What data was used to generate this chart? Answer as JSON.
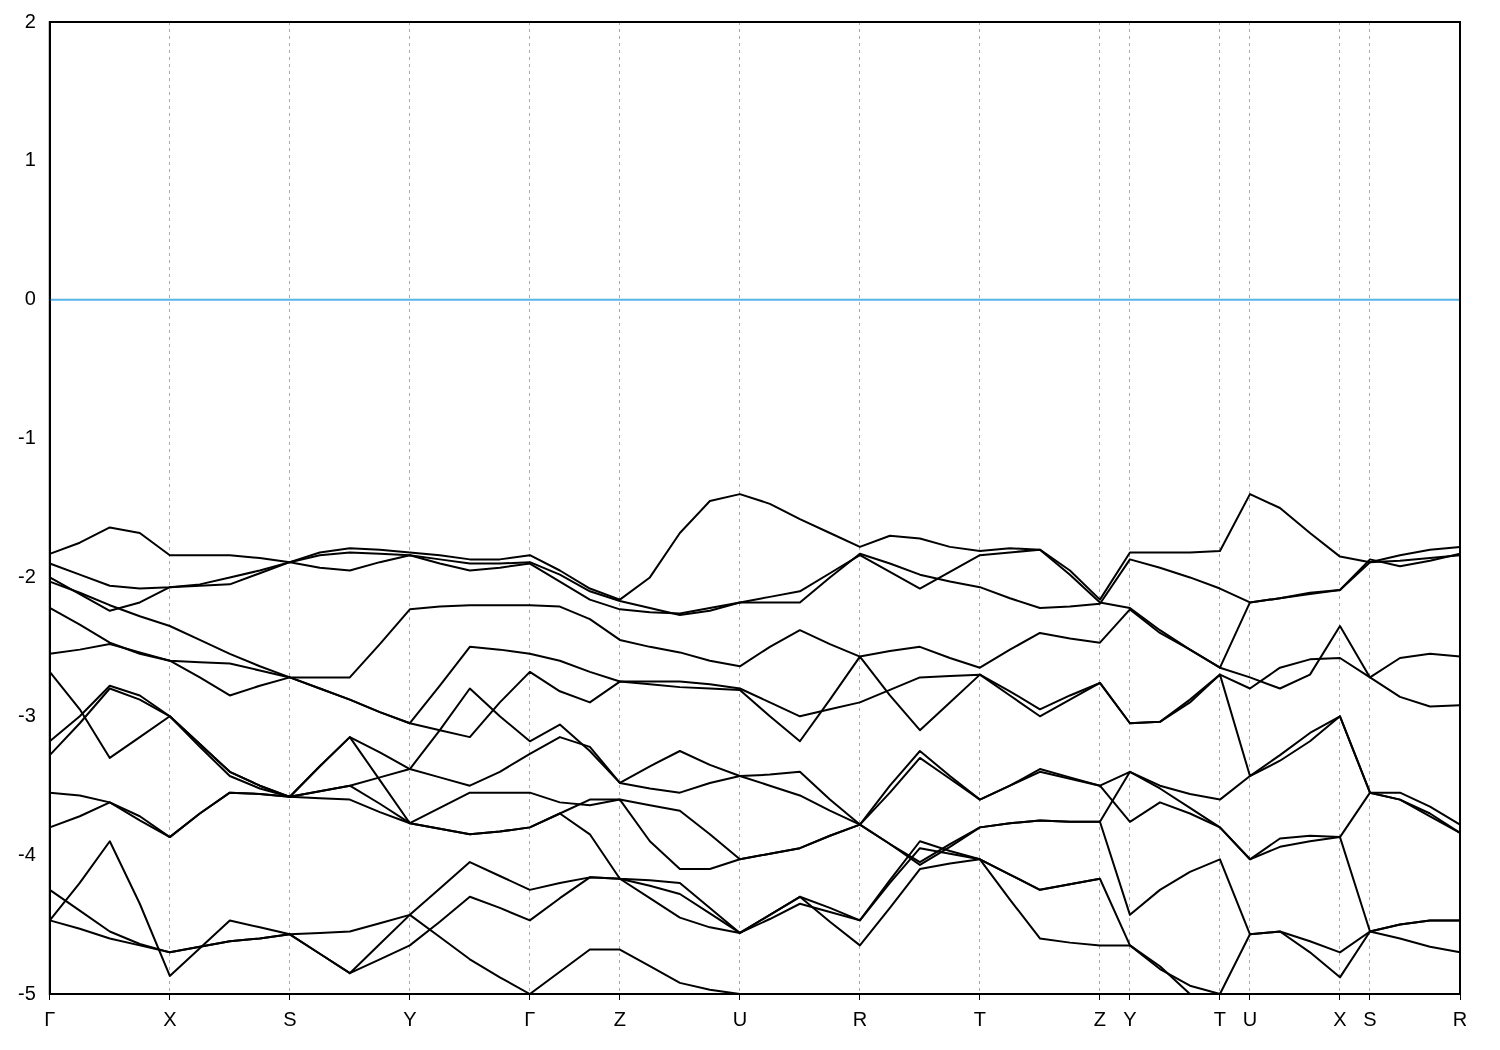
{
  "chart_data": {
    "type": "line",
    "ylim": [
      -5,
      2
    ],
    "yticks": [
      -5,
      -4,
      -3,
      -2,
      -1,
      0,
      1,
      2
    ],
    "categories": [
      "Γ",
      null,
      null,
      null,
      "X",
      null,
      null,
      null,
      "S",
      null,
      null,
      null,
      "Y",
      null,
      null,
      null,
      "Γ",
      null,
      null,
      "Z",
      null,
      null,
      null,
      "U",
      null,
      null,
      null,
      "R",
      null,
      null,
      null,
      "T",
      null,
      null,
      null,
      "Z",
      "Y",
      null,
      null,
      "T",
      "U",
      null,
      null,
      "X",
      "S",
      null,
      null,
      "R"
    ],
    "grid": "x",
    "legend": false,
    "marker": "none",
    "line_style": "solid",
    "ref_lines": [
      {
        "axis": "y",
        "value": 0,
        "color": "#56b4e9"
      }
    ],
    "series": [
      {
        "color": "#000000",
        "values": [
          -1.83,
          -1.75,
          -1.64,
          -1.68,
          -1.84,
          -1.84,
          -1.84,
          -1.86,
          -1.89,
          -1.82,
          -1.79,
          -1.8,
          -1.82,
          -1.84,
          -1.87,
          -1.87,
          -1.84,
          -1.95,
          -2.08,
          -2.16,
          -2.0,
          -1.68,
          -1.45,
          -1.4,
          -1.47,
          -1.58,
          -1.68,
          -1.78,
          -1.7,
          -1.72,
          -1.78,
          -1.81,
          -1.79,
          -1.8,
          -1.95,
          -2.16,
          -1.82,
          -1.82,
          -1.82,
          -1.81,
          -1.4,
          -1.5,
          -1.68,
          -1.85,
          -1.89,
          -1.84,
          -1.8,
          -1.78
        ]
      },
      {
        "color": "#000000",
        "values": [
          -1.9,
          -1.98,
          -2.06,
          -2.08,
          -2.07,
          -2.05,
          -2.0,
          -1.95,
          -1.89,
          -1.93,
          -1.95,
          -1.89,
          -1.84,
          -1.87,
          -1.9,
          -1.9,
          -1.89,
          -1.98,
          -2.1,
          -2.17,
          -2.22,
          -2.27,
          -2.24,
          -2.18,
          -2.18,
          -2.18,
          -2.0,
          -1.83,
          -1.9,
          -1.98,
          -2.03,
          -2.07,
          -2.15,
          -2.22,
          -2.21,
          -2.19,
          -1.87,
          -1.93,
          -2.0,
          -2.08,
          -2.18,
          -2.15,
          -2.11,
          -2.09,
          -1.87,
          -1.92,
          -1.88,
          -1.83
        ]
      },
      {
        "color": "#000000",
        "values": [
          -2.0,
          -2.12,
          -2.24,
          -2.18,
          -2.07,
          -2.06,
          -2.05,
          -1.97,
          -1.89,
          -1.84,
          -1.82,
          -1.83,
          -1.84,
          -1.9,
          -1.95,
          -1.93,
          -1.9,
          -2.03,
          -2.16,
          -2.23,
          -2.25,
          -2.26,
          -2.22,
          -2.18,
          -2.14,
          -2.1,
          -1.97,
          -1.84,
          -1.96,
          -2.08,
          -1.96,
          -1.84,
          -1.82,
          -1.8,
          -1.98,
          -2.18,
          -2.22,
          -2.38,
          -2.52,
          -2.65,
          -2.18,
          -2.15,
          -2.12,
          -2.09,
          -1.89,
          -1.88,
          -1.86,
          -1.84
        ]
      },
      {
        "color": "#000000",
        "values": [
          -2.03,
          -2.11,
          -2.2,
          -2.28,
          -2.35,
          -2.45,
          -2.55,
          -2.64,
          -2.72,
          -2.72,
          -2.72,
          -2.48,
          -2.23,
          -2.21,
          -2.2,
          -2.2,
          -2.2,
          -2.21,
          -2.3,
          -2.45,
          -2.5,
          -2.54,
          -2.6,
          -2.64,
          -2.5,
          -2.38,
          -2.48,
          -2.57,
          -2.53,
          -2.5,
          -2.58,
          -2.65,
          -2.52,
          -2.4,
          -2.44,
          -2.47,
          -2.23,
          -2.4,
          -2.52,
          -2.65,
          -2.72,
          -2.8,
          -2.7,
          -2.35,
          -2.72,
          -2.58,
          -2.55,
          -2.57
        ]
      },
      {
        "color": "#000000",
        "values": [
          -2.22,
          -2.34,
          -2.47,
          -2.55,
          -2.6,
          -2.61,
          -2.62,
          -2.67,
          -2.72,
          -2.8,
          -2.88,
          -2.97,
          -3.05,
          -2.78,
          -2.5,
          -2.52,
          -2.55,
          -2.6,
          -2.68,
          -2.75,
          -2.75,
          -2.75,
          -2.77,
          -2.8,
          -2.9,
          -3.0,
          -2.95,
          -2.9,
          -2.81,
          -2.72,
          -2.71,
          -2.7,
          -2.85,
          -3.0,
          -2.88,
          -2.76,
          -3.05,
          -3.04,
          -2.9,
          -2.7,
          -2.8,
          -2.65,
          -2.59,
          -2.58,
          -2.72,
          -2.86,
          -2.93,
          -2.92
        ]
      },
      {
        "color": "#000000",
        "values": [
          -2.55,
          -2.52,
          -2.48,
          -2.54,
          -2.6,
          -2.72,
          -2.85,
          -2.78,
          -2.72,
          -2.8,
          -2.88,
          -2.97,
          -3.05,
          -3.1,
          -3.15,
          -2.9,
          -2.68,
          -2.82,
          -2.9,
          -2.75,
          -2.77,
          -2.79,
          -2.8,
          -2.81,
          -3.0,
          -3.18,
          -2.88,
          -2.57,
          -2.85,
          -3.1,
          -2.9,
          -2.7,
          -2.82,
          -2.95,
          -2.85,
          -2.76,
          -3.05,
          -3.04,
          -2.88,
          -2.7,
          -3.43,
          -3.28,
          -3.12,
          -3.0,
          -3.55,
          -3.6,
          -3.7,
          -3.84
        ]
      },
      {
        "color": "#000000",
        "values": [
          -2.68,
          -2.95,
          -3.3,
          -3.15,
          -3.0,
          -3.2,
          -3.4,
          -3.5,
          -3.58,
          -3.54,
          -3.5,
          -3.44,
          -3.38,
          -3.1,
          -2.8,
          -3.0,
          -3.18,
          -3.06,
          -3.25,
          -3.48,
          -3.36,
          -3.25,
          -3.35,
          -3.43,
          -3.5,
          -3.57,
          -3.68,
          -3.78,
          -3.5,
          -3.25,
          -3.43,
          -3.6,
          -3.5,
          -3.4,
          -3.45,
          -3.5,
          -3.4,
          -3.5,
          -3.56,
          -3.6,
          -3.43,
          -3.32,
          -3.18,
          -3.0,
          -3.55,
          -3.55,
          -3.65,
          -3.78
        ]
      },
      {
        "color": "#000000",
        "values": [
          -3.18,
          -3.0,
          -2.78,
          -2.85,
          -3.0,
          -3.2,
          -3.4,
          -3.5,
          -3.58,
          -3.36,
          -3.15,
          -3.26,
          -3.38,
          -3.44,
          -3.5,
          -3.4,
          -3.27,
          -3.15,
          -3.22,
          -3.48,
          -3.52,
          -3.55,
          -3.48,
          -3.43,
          -3.42,
          -3.4,
          -3.6,
          -3.78,
          -3.55,
          -3.3,
          -3.45,
          -3.6,
          -3.5,
          -3.38,
          -3.44,
          -3.5,
          -3.76,
          -3.62,
          -3.7,
          -3.8,
          -4.03,
          -3.88,
          -3.86,
          -3.87,
          -3.55,
          -3.6,
          -3.72,
          -3.84
        ]
      },
      {
        "color": "#000000",
        "values": [
          -3.28,
          -3.05,
          -2.8,
          -2.88,
          -3.0,
          -3.22,
          -3.43,
          -3.52,
          -3.58,
          -3.54,
          -3.5,
          -3.63,
          -3.77,
          -3.66,
          -3.55,
          -3.55,
          -3.55,
          -3.62,
          -3.64,
          -3.6,
          -3.9,
          -4.1,
          -4.1,
          -4.03,
          -3.99,
          -3.95,
          -3.86,
          -3.78,
          -3.92,
          -4.07,
          -3.94,
          -3.8,
          -3.77,
          -3.75,
          -3.76,
          -3.76,
          -3.4,
          -3.52,
          -3.66,
          -3.8,
          -4.03,
          -3.94,
          -3.9,
          -3.87,
          -4.55,
          -4.5,
          -4.47,
          -4.47
        ]
      },
      {
        "color": "#000000",
        "values": [
          -3.55,
          -3.57,
          -3.62,
          -3.75,
          -3.87,
          -3.7,
          -3.55,
          -3.56,
          -3.58,
          -3.36,
          -3.15,
          -3.46,
          -3.77,
          -3.81,
          -3.85,
          -3.83,
          -3.8,
          -3.7,
          -3.6,
          -3.6,
          -3.64,
          -3.68,
          -3.85,
          -4.03,
          -3.99,
          -3.95,
          -3.86,
          -3.78,
          -3.92,
          -4.05,
          -3.92,
          -3.8,
          -3.77,
          -3.75,
          -3.76,
          -3.76,
          -4.43,
          -4.25,
          -4.12,
          -4.03,
          -4.57,
          -4.55,
          -4.62,
          -4.7,
          -4.55,
          -4.6,
          -4.66,
          -4.7
        ]
      },
      {
        "color": "#000000",
        "values": [
          -3.8,
          -3.72,
          -3.62,
          -3.72,
          -3.87,
          -3.7,
          -3.55,
          -3.56,
          -3.58,
          -3.59,
          -3.6,
          -3.69,
          -3.77,
          -3.81,
          -3.85,
          -3.83,
          -3.8,
          -3.7,
          -3.85,
          -4.17,
          -4.18,
          -4.2,
          -4.38,
          -4.56,
          -4.43,
          -4.3,
          -4.38,
          -4.47,
          -4.2,
          -3.95,
          -3.99,
          -4.03,
          -4.14,
          -4.25,
          -4.21,
          -4.17,
          -4.65,
          -4.82,
          -4.94,
          -5.0,
          -4.57,
          -4.55,
          -4.7,
          -4.88,
          -4.55,
          -4.5,
          -4.47,
          -4.47
        ]
      },
      {
        "color": "#000000",
        "values": [
          -4.25,
          -4.4,
          -4.55,
          -4.64,
          -4.7,
          -4.66,
          -4.62,
          -4.6,
          -4.57,
          -4.56,
          -4.55,
          -4.49,
          -4.43,
          -4.24,
          -4.05,
          -4.15,
          -4.25,
          -4.2,
          -4.16,
          -4.17,
          -4.22,
          -4.28,
          -4.42,
          -4.56,
          -4.46,
          -4.35,
          -4.41,
          -4.47,
          -4.18,
          -3.9,
          -3.97,
          -4.03,
          -4.14,
          -4.25,
          -4.21,
          -4.17,
          null,
          null,
          null,
          null,
          null,
          null,
          null,
          null,
          null,
          null,
          null,
          null
        ]
      },
      {
        "color": "#000000",
        "values": [
          -4.47,
          -4.53,
          -4.6,
          -4.65,
          -4.7,
          -4.66,
          -4.62,
          -4.6,
          -4.57,
          -4.71,
          -4.85,
          -4.75,
          -4.65,
          -4.48,
          -4.3,
          -4.38,
          -4.47,
          -4.31,
          -4.16,
          -4.17,
          -4.31,
          -4.45,
          -4.52,
          -4.56,
          -4.43,
          -4.3,
          -4.48,
          -4.65,
          -4.38,
          -4.1,
          -4.06,
          -4.03,
          -4.32,
          -4.6,
          -4.63,
          -4.65,
          -4.65,
          -4.8,
          -5.0,
          null,
          null,
          null,
          null,
          null,
          null,
          null,
          null,
          null
        ]
      },
      {
        "color": "#000000",
        "values": [
          -4.47,
          -4.2,
          -3.9,
          -4.35,
          -4.87,
          -4.67,
          -4.47,
          -4.52,
          -4.57,
          -4.71,
          -4.85,
          -4.64,
          -4.43,
          -4.59,
          -4.75,
          -4.88,
          -5.0,
          -4.84,
          -4.68,
          -4.68,
          -4.8,
          -4.92,
          -4.97,
          -5.0,
          null,
          null,
          null,
          null,
          null,
          null,
          null,
          null,
          null,
          null,
          null,
          null,
          null,
          null,
          null,
          null,
          null,
          null,
          null,
          null,
          null,
          null,
          null,
          null
        ]
      }
    ]
  }
}
